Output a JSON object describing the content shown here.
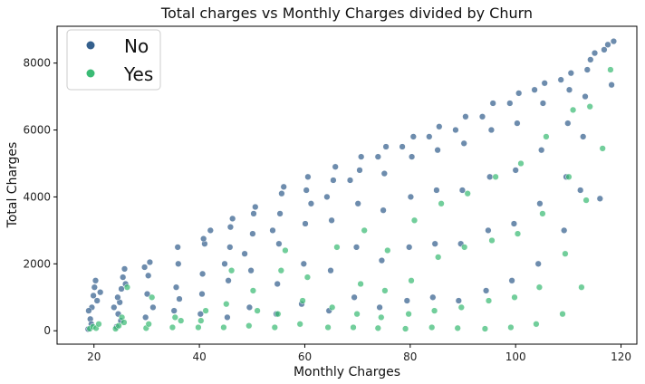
{
  "chart_data": {
    "type": "scatter",
    "title": "Total charges vs Monthly Charges divided by Churn",
    "xlabel": "Monthly Charges",
    "ylabel": "Total Charges",
    "xlim": [
      13,
      123
    ],
    "ylim": [
      -400,
      9100
    ],
    "xticks": [
      20,
      40,
      60,
      80,
      100,
      120
    ],
    "yticks": [
      0,
      2000,
      4000,
      6000,
      8000
    ],
    "grid": false,
    "legend_position": "upper-left",
    "series": [
      {
        "name": "No",
        "color": "#35608d",
        "points": [
          [
            18.9,
            50
          ],
          [
            19.3,
            350
          ],
          [
            19.6,
            700
          ],
          [
            19.9,
            1050
          ],
          [
            20.1,
            1300
          ],
          [
            20.3,
            1500
          ],
          [
            19.5,
            200
          ],
          [
            20.6,
            900
          ],
          [
            21.2,
            1150
          ],
          [
            19.0,
            600
          ],
          [
            24.3,
            120
          ],
          [
            24.6,
            500
          ],
          [
            24.9,
            850
          ],
          [
            25.2,
            1250
          ],
          [
            25.5,
            1600
          ],
          [
            25.8,
            1850
          ],
          [
            24.5,
            1000
          ],
          [
            25.1,
            300
          ],
          [
            23.8,
            700
          ],
          [
            26.0,
            1400
          ],
          [
            29.8,
            400
          ],
          [
            30.1,
            1100
          ],
          [
            30.3,
            1650
          ],
          [
            29.6,
            1900
          ],
          [
            31.2,
            700
          ],
          [
            30.6,
            2050
          ],
          [
            35.2,
            600
          ],
          [
            35.6,
            1300
          ],
          [
            36.0,
            2000
          ],
          [
            35.9,
            2500
          ],
          [
            36.2,
            950
          ],
          [
            40.2,
            500
          ],
          [
            40.6,
            1700
          ],
          [
            41.0,
            2600
          ],
          [
            40.8,
            2750
          ],
          [
            42.1,
            3000
          ],
          [
            40.5,
            1100
          ],
          [
            45.3,
            400
          ],
          [
            45.5,
            1500
          ],
          [
            45.8,
            2500
          ],
          [
            45.9,
            3100
          ],
          [
            46.3,
            3350
          ],
          [
            44.8,
            2000
          ],
          [
            49.5,
            700
          ],
          [
            49.8,
            1800
          ],
          [
            50.1,
            2900
          ],
          [
            50.3,
            3500
          ],
          [
            50.6,
            3700
          ],
          [
            48.6,
            2300
          ],
          [
            54.6,
            500
          ],
          [
            54.8,
            1400
          ],
          [
            55.1,
            2600
          ],
          [
            55.3,
            3500
          ],
          [
            55.6,
            4100
          ],
          [
            56.0,
            4300
          ],
          [
            53.9,
            3000
          ],
          [
            59.4,
            800
          ],
          [
            59.8,
            2000
          ],
          [
            60.1,
            3200
          ],
          [
            60.3,
            4200
          ],
          [
            60.6,
            4600
          ],
          [
            61.2,
            3800
          ],
          [
            64.6,
            600
          ],
          [
            64.9,
            1800
          ],
          [
            65.1,
            3300
          ],
          [
            65.4,
            4500
          ],
          [
            65.8,
            4900
          ],
          [
            64.2,
            4000
          ],
          [
            69.4,
            1000
          ],
          [
            69.8,
            2500
          ],
          [
            70.1,
            3800
          ],
          [
            70.4,
            4800
          ],
          [
            70.7,
            5200
          ],
          [
            68.6,
            4500
          ],
          [
            74.2,
            700
          ],
          [
            74.6,
            2100
          ],
          [
            74.9,
            3600
          ],
          [
            75.1,
            4700
          ],
          [
            75.4,
            5500
          ],
          [
            73.9,
            5200
          ],
          [
            79.4,
            900
          ],
          [
            79.8,
            2500
          ],
          [
            80.1,
            4000
          ],
          [
            80.3,
            5200
          ],
          [
            80.6,
            5800
          ],
          [
            78.5,
            5500
          ],
          [
            84.3,
            1000
          ],
          [
            84.7,
            2600
          ],
          [
            85.0,
            4200
          ],
          [
            85.2,
            5400
          ],
          [
            85.5,
            6100
          ],
          [
            83.6,
            5800
          ],
          [
            89.2,
            900
          ],
          [
            89.6,
            2600
          ],
          [
            89.9,
            4200
          ],
          [
            90.2,
            5600
          ],
          [
            90.5,
            6400
          ],
          [
            88.6,
            6000
          ],
          [
            94.4,
            1200
          ],
          [
            94.8,
            3000
          ],
          [
            95.1,
            4600
          ],
          [
            95.4,
            6000
          ],
          [
            95.7,
            6800
          ],
          [
            93.7,
            6400
          ],
          [
            99.3,
            1500
          ],
          [
            99.7,
            3200
          ],
          [
            100.0,
            4800
          ],
          [
            100.3,
            6200
          ],
          [
            100.6,
            7100
          ],
          [
            98.9,
            6800
          ],
          [
            104.3,
            2000
          ],
          [
            104.6,
            3800
          ],
          [
            104.9,
            5400
          ],
          [
            105.2,
            6800
          ],
          [
            105.5,
            7400
          ],
          [
            103.6,
            7200
          ],
          [
            109.2,
            3000
          ],
          [
            109.6,
            4600
          ],
          [
            109.9,
            6200
          ],
          [
            110.2,
            7200
          ],
          [
            110.5,
            7700
          ],
          [
            108.6,
            7500
          ],
          [
            112.3,
            4200
          ],
          [
            112.8,
            5800
          ],
          [
            113.2,
            7000
          ],
          [
            113.6,
            7800
          ],
          [
            114.2,
            8100
          ],
          [
            115.0,
            8300
          ],
          [
            116.0,
            3950
          ],
          [
            116.8,
            8400
          ],
          [
            117.5,
            8550
          ],
          [
            118.2,
            7350
          ],
          [
            118.6,
            8650
          ]
        ]
      },
      {
        "name": "Yes",
        "color": "#3bbb75",
        "points": [
          [
            19.2,
            60
          ],
          [
            19.8,
            120
          ],
          [
            20.4,
            80
          ],
          [
            20.9,
            200
          ],
          [
            24.1,
            60
          ],
          [
            24.7,
            150
          ],
          [
            25.3,
            400
          ],
          [
            25.7,
            250
          ],
          [
            26.3,
            1300
          ],
          [
            29.9,
            80
          ],
          [
            30.4,
            200
          ],
          [
            31.0,
            1000
          ],
          [
            34.9,
            100
          ],
          [
            35.4,
            400
          ],
          [
            36.5,
            300
          ],
          [
            39.8,
            100
          ],
          [
            40.3,
            300
          ],
          [
            41.2,
            600
          ],
          [
            44.6,
            100
          ],
          [
            45.1,
            800
          ],
          [
            46.1,
            1800
          ],
          [
            49.4,
            150
          ],
          [
            50.2,
            1200
          ],
          [
            51.0,
            600
          ],
          [
            54.3,
            100
          ],
          [
            54.9,
            500
          ],
          [
            55.5,
            1800
          ],
          [
            56.3,
            2400
          ],
          [
            59.1,
            200
          ],
          [
            59.6,
            900
          ],
          [
            60.5,
            1600
          ],
          [
            64.4,
            100
          ],
          [
            65.2,
            700
          ],
          [
            66.1,
            2500
          ],
          [
            69.2,
            100
          ],
          [
            69.9,
            500
          ],
          [
            70.6,
            1400
          ],
          [
            71.3,
            3000
          ],
          [
            73.9,
            80
          ],
          [
            74.5,
            400
          ],
          [
            75.2,
            1200
          ],
          [
            75.7,
            2400
          ],
          [
            79.1,
            60
          ],
          [
            79.7,
            500
          ],
          [
            80.2,
            1500
          ],
          [
            80.8,
            3300
          ],
          [
            84.1,
            100
          ],
          [
            84.6,
            600
          ],
          [
            85.3,
            2200
          ],
          [
            85.9,
            3800
          ],
          [
            89.0,
            80
          ],
          [
            89.7,
            700
          ],
          [
            90.3,
            2500
          ],
          [
            90.9,
            4100
          ],
          [
            94.2,
            60
          ],
          [
            94.9,
            900
          ],
          [
            95.5,
            2700
          ],
          [
            96.2,
            4600
          ],
          [
            99.1,
            100
          ],
          [
            99.8,
            1000
          ],
          [
            100.4,
            2900
          ],
          [
            101.0,
            5000
          ],
          [
            103.9,
            200
          ],
          [
            104.5,
            1300
          ],
          [
            105.1,
            3500
          ],
          [
            105.8,
            5800
          ],
          [
            108.9,
            500
          ],
          [
            109.4,
            2300
          ],
          [
            110.1,
            4600
          ],
          [
            110.9,
            6600
          ],
          [
            112.5,
            1300
          ],
          [
            113.4,
            3900
          ],
          [
            114.1,
            6700
          ],
          [
            116.5,
            5450
          ],
          [
            118.0,
            7800
          ]
        ]
      }
    ]
  }
}
